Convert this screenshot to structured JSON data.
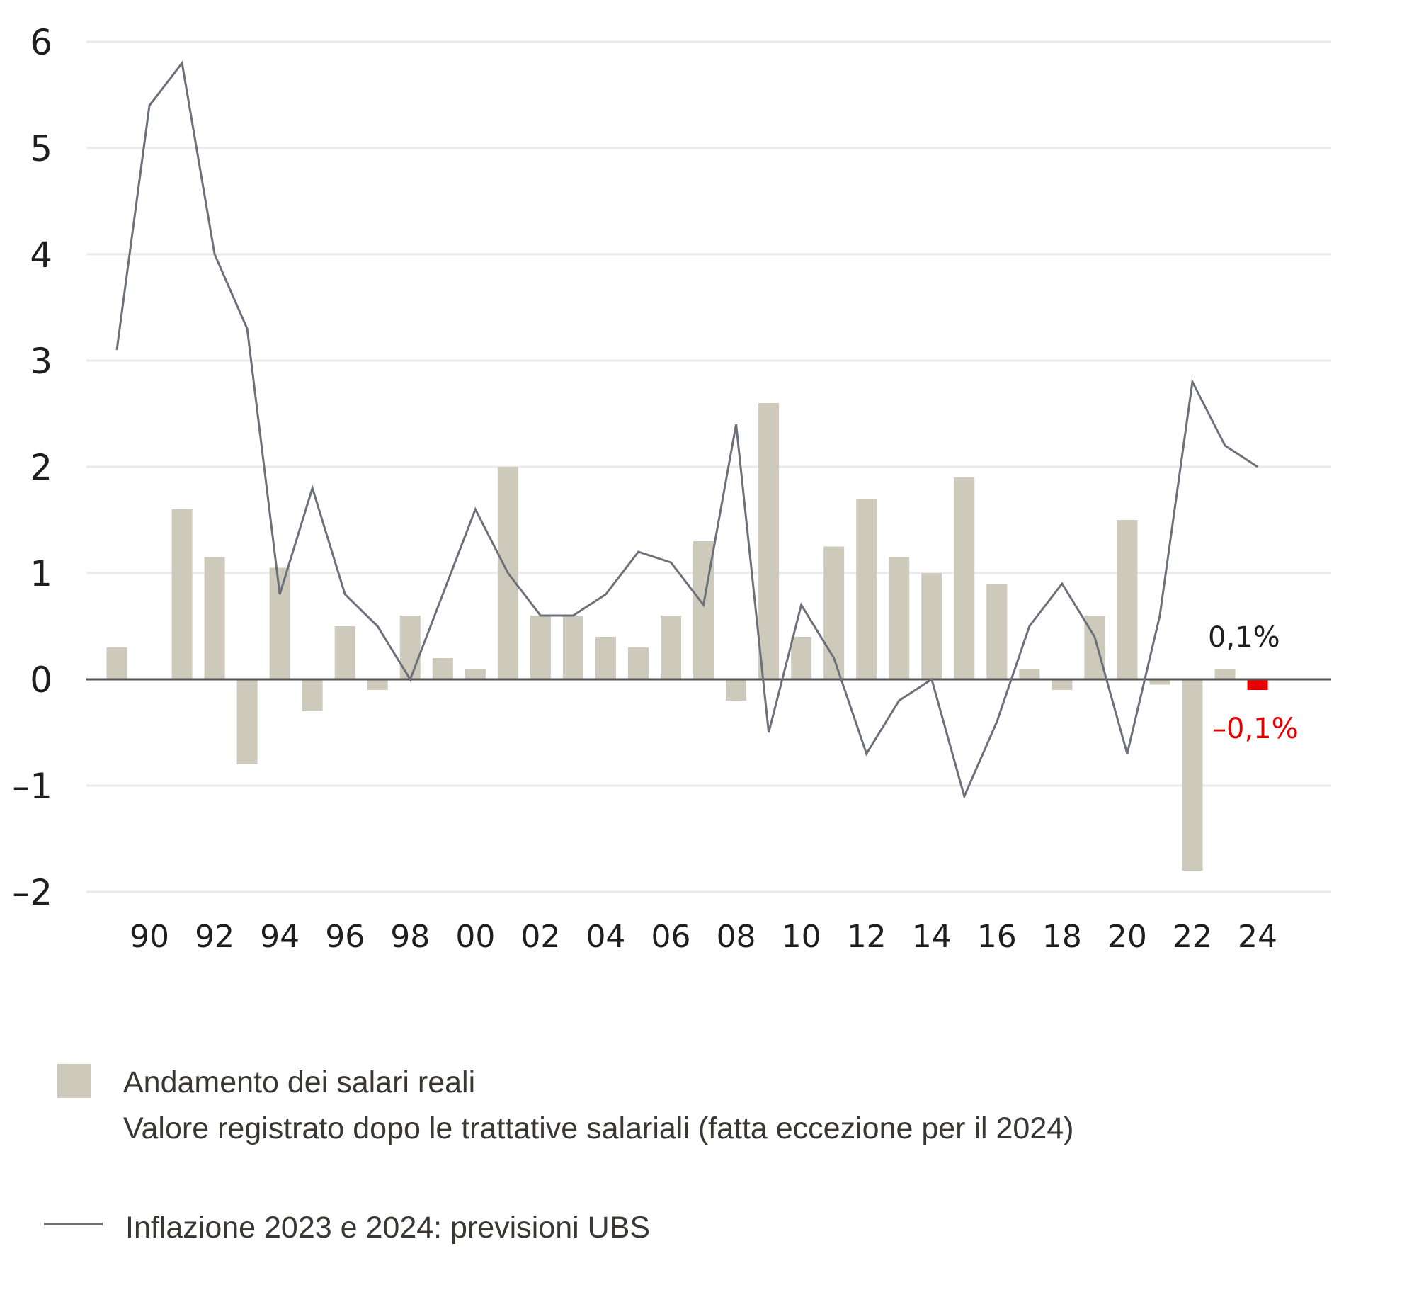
{
  "chart_data": {
    "type": "bar+line",
    "title": "",
    "xlabel": "",
    "ylabel": "",
    "ylim": [
      -2,
      6
    ],
    "yticks": [
      6,
      5,
      4,
      3,
      2,
      1,
      0,
      -1,
      -2
    ],
    "ytick_labels": [
      "6",
      "5",
      "4",
      "3",
      "2",
      "1",
      "0",
      "–1",
      "–2"
    ],
    "grid": true,
    "x": [
      1989,
      1990,
      1991,
      1992,
      1993,
      1994,
      1995,
      1996,
      1997,
      1998,
      1999,
      2000,
      2001,
      2002,
      2003,
      2004,
      2005,
      2006,
      2007,
      2008,
      2009,
      2010,
      2011,
      2012,
      2013,
      2014,
      2015,
      2016,
      2017,
      2018,
      2019,
      2020,
      2021,
      2022,
      2023,
      2024
    ],
    "xtick_years": [
      1990,
      1992,
      1994,
      1996,
      1998,
      2000,
      2002,
      2004,
      2006,
      2008,
      2010,
      2012,
      2014,
      2016,
      2018,
      2020,
      2022,
      2024
    ],
    "xtick_labels": [
      "90",
      "92",
      "94",
      "96",
      "98",
      "00",
      "02",
      "04",
      "06",
      "08",
      "10",
      "12",
      "14",
      "16",
      "18",
      "20",
      "22",
      "24"
    ],
    "series": [
      {
        "name": "Andamento dei salari reali",
        "type": "bar",
        "color": "#cdc9bb",
        "highlight_color": "#e60000",
        "highlight_year": 2024,
        "values": [
          0.3,
          0.0,
          1.6,
          1.15,
          -0.8,
          1.05,
          -0.3,
          0.5,
          -0.1,
          0.6,
          0.2,
          0.1,
          2.0,
          0.6,
          0.6,
          0.4,
          0.3,
          0.6,
          1.3,
          -0.2,
          2.6,
          0.4,
          1.25,
          1.7,
          1.15,
          1.0,
          1.9,
          0.9,
          0.1,
          -0.1,
          0.6,
          1.5,
          -0.05,
          -1.8,
          0.1,
          -0.1
        ]
      },
      {
        "name": "Inflazione 2023 e 2024: previsioni UBS",
        "type": "line",
        "color": "#6c7079",
        "values": [
          3.1,
          5.4,
          5.8,
          4.0,
          3.3,
          0.8,
          1.8,
          0.8,
          0.5,
          0.0,
          0.8,
          1.6,
          1.0,
          0.6,
          0.6,
          0.8,
          1.2,
          1.1,
          0.7,
          2.4,
          -0.5,
          0.7,
          0.2,
          -0.7,
          -0.2,
          0.0,
          -1.1,
          -0.4,
          0.5,
          0.9,
          0.4,
          -0.7,
          0.6,
          2.8,
          2.2,
          2.0
        ]
      }
    ],
    "annotations": [
      {
        "text": "0,1%",
        "year": 2023,
        "color": "#1e1e1e"
      },
      {
        "text": "–0,1%",
        "year": 2024,
        "color": "#e60000"
      }
    ],
    "legend": {
      "placement": "bottom-left",
      "bar_label": "Andamento dei salari reali",
      "bar_sublabel": "Valore registrato dopo le trattative salariali (fatta eccezione per il 2024)",
      "line_label": "Inflazione 2023 e 2024: previsioni UBS"
    }
  }
}
